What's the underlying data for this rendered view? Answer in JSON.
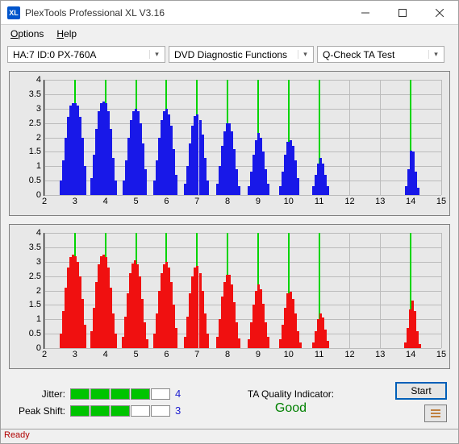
{
  "window": {
    "title": "PlexTools Professional XL V3.16"
  },
  "menu": {
    "options": "Options",
    "help": "Help"
  },
  "toolbar": {
    "device": "HA:7 ID:0   PX-760A",
    "category": "DVD Diagnostic Functions",
    "test": "Q-Check TA Test"
  },
  "chart": {
    "ylabels": [
      "0",
      "0.5",
      "1",
      "1.5",
      "2",
      "2.5",
      "3",
      "3.5",
      "4"
    ],
    "ymax": 4,
    "xlabels": [
      "2",
      "3",
      "4",
      "5",
      "6",
      "7",
      "8",
      "9",
      "10",
      "11",
      "12",
      "13",
      "14",
      "15"
    ],
    "xstart": 2,
    "xend": 15,
    "background_color": "#e8e8e8",
    "grid_color": "#bbbbbb",
    "marker_color": "#00d400",
    "markers": [
      3,
      4,
      5,
      6,
      7,
      8,
      9,
      10,
      11,
      14
    ],
    "top": {
      "bar_color": "#1818e8",
      "bars": [
        [
          2.55,
          0.5
        ],
        [
          2.62,
          1.2
        ],
        [
          2.7,
          2.0
        ],
        [
          2.78,
          2.7
        ],
        [
          2.86,
          3.1
        ],
        [
          2.94,
          3.2
        ],
        [
          3.02,
          3.2
        ],
        [
          3.1,
          3.1
        ],
        [
          3.18,
          2.7
        ],
        [
          3.26,
          2.0
        ],
        [
          3.34,
          1.0
        ],
        [
          3.55,
          0.6
        ],
        [
          3.62,
          1.4
        ],
        [
          3.7,
          2.3
        ],
        [
          3.78,
          2.9
        ],
        [
          3.86,
          3.2
        ],
        [
          3.94,
          3.25
        ],
        [
          4.02,
          3.2
        ],
        [
          4.1,
          2.9
        ],
        [
          4.18,
          2.3
        ],
        [
          4.26,
          1.3
        ],
        [
          4.34,
          0.5
        ],
        [
          4.6,
          0.5
        ],
        [
          4.68,
          1.2
        ],
        [
          4.76,
          2.0
        ],
        [
          4.84,
          2.6
        ],
        [
          4.92,
          2.9
        ],
        [
          5.0,
          3.0
        ],
        [
          5.08,
          2.9
        ],
        [
          5.16,
          2.5
        ],
        [
          5.24,
          1.8
        ],
        [
          5.32,
          0.9
        ],
        [
          5.6,
          0.5
        ],
        [
          5.68,
          1.2
        ],
        [
          5.76,
          2.0
        ],
        [
          5.84,
          2.6
        ],
        [
          5.92,
          2.9
        ],
        [
          6.0,
          3.0
        ],
        [
          6.08,
          2.8
        ],
        [
          6.16,
          2.4
        ],
        [
          6.24,
          1.6
        ],
        [
          6.32,
          0.7
        ],
        [
          6.62,
          0.4
        ],
        [
          6.7,
          1.0
        ],
        [
          6.78,
          1.8
        ],
        [
          6.86,
          2.4
        ],
        [
          6.94,
          2.75
        ],
        [
          7.02,
          2.8
        ],
        [
          7.1,
          2.6
        ],
        [
          7.18,
          2.1
        ],
        [
          7.26,
          1.3
        ],
        [
          7.34,
          0.5
        ],
        [
          7.66,
          0.4
        ],
        [
          7.74,
          1.0
        ],
        [
          7.82,
          1.7
        ],
        [
          7.9,
          2.2
        ],
        [
          7.98,
          2.5
        ],
        [
          8.06,
          2.5
        ],
        [
          8.14,
          2.2
        ],
        [
          8.22,
          1.6
        ],
        [
          8.3,
          0.9
        ],
        [
          8.38,
          0.3
        ],
        [
          8.7,
          0.3
        ],
        [
          8.78,
          0.8
        ],
        [
          8.86,
          1.4
        ],
        [
          8.94,
          1.9
        ],
        [
          9.02,
          2.15
        ],
        [
          9.1,
          2.0
        ],
        [
          9.18,
          1.5
        ],
        [
          9.26,
          0.9
        ],
        [
          9.34,
          0.4
        ],
        [
          9.74,
          0.3
        ],
        [
          9.82,
          0.8
        ],
        [
          9.9,
          1.4
        ],
        [
          9.98,
          1.85
        ],
        [
          10.06,
          1.9
        ],
        [
          10.14,
          1.7
        ],
        [
          10.22,
          1.2
        ],
        [
          10.3,
          0.6
        ],
        [
          10.8,
          0.3
        ],
        [
          10.88,
          0.7
        ],
        [
          10.96,
          1.1
        ],
        [
          11.04,
          1.3
        ],
        [
          11.12,
          1.1
        ],
        [
          11.2,
          0.7
        ],
        [
          11.28,
          0.3
        ],
        [
          13.86,
          0.3
        ],
        [
          13.94,
          0.9
        ],
        [
          14.02,
          1.55
        ],
        [
          14.1,
          1.5
        ],
        [
          14.18,
          0.8
        ],
        [
          14.26,
          0.25
        ]
      ]
    },
    "bottom": {
      "bar_color": "#f01010",
      "bars": [
        [
          2.55,
          0.5
        ],
        [
          2.62,
          1.3
        ],
        [
          2.7,
          2.1
        ],
        [
          2.78,
          2.8
        ],
        [
          2.86,
          3.15
        ],
        [
          2.94,
          3.25
        ],
        [
          3.02,
          3.2
        ],
        [
          3.1,
          3.0
        ],
        [
          3.18,
          2.5
        ],
        [
          3.26,
          1.7
        ],
        [
          3.34,
          0.8
        ],
        [
          3.55,
          0.6
        ],
        [
          3.62,
          1.4
        ],
        [
          3.7,
          2.3
        ],
        [
          3.78,
          2.9
        ],
        [
          3.86,
          3.2
        ],
        [
          3.94,
          3.25
        ],
        [
          4.02,
          3.15
        ],
        [
          4.1,
          2.8
        ],
        [
          4.18,
          2.1
        ],
        [
          4.26,
          1.2
        ],
        [
          4.34,
          0.5
        ],
        [
          4.58,
          0.4
        ],
        [
          4.66,
          1.1
        ],
        [
          4.74,
          1.9
        ],
        [
          4.82,
          2.6
        ],
        [
          4.9,
          2.95
        ],
        [
          4.98,
          3.05
        ],
        [
          5.06,
          2.9
        ],
        [
          5.14,
          2.5
        ],
        [
          5.22,
          1.7
        ],
        [
          5.3,
          0.9
        ],
        [
          5.38,
          0.3
        ],
        [
          5.6,
          0.5
        ],
        [
          5.68,
          1.2
        ],
        [
          5.76,
          2.0
        ],
        [
          5.84,
          2.6
        ],
        [
          5.92,
          2.9
        ],
        [
          6.0,
          3.0
        ],
        [
          6.08,
          2.8
        ],
        [
          6.16,
          2.3
        ],
        [
          6.24,
          1.5
        ],
        [
          6.32,
          0.7
        ],
        [
          6.62,
          0.4
        ],
        [
          6.7,
          1.1
        ],
        [
          6.78,
          1.9
        ],
        [
          6.86,
          2.5
        ],
        [
          6.94,
          2.8
        ],
        [
          7.02,
          2.85
        ],
        [
          7.1,
          2.6
        ],
        [
          7.18,
          2.0
        ],
        [
          7.26,
          1.2
        ],
        [
          7.34,
          0.5
        ],
        [
          7.66,
          0.4
        ],
        [
          7.74,
          1.0
        ],
        [
          7.82,
          1.8
        ],
        [
          7.9,
          2.3
        ],
        [
          7.98,
          2.55
        ],
        [
          8.06,
          2.55
        ],
        [
          8.14,
          2.2
        ],
        [
          8.22,
          1.6
        ],
        [
          8.3,
          0.9
        ],
        [
          8.38,
          0.35
        ],
        [
          8.7,
          0.3
        ],
        [
          8.78,
          0.9
        ],
        [
          8.86,
          1.5
        ],
        [
          8.94,
          2.0
        ],
        [
          9.02,
          2.2
        ],
        [
          9.1,
          2.05
        ],
        [
          9.18,
          1.55
        ],
        [
          9.26,
          0.9
        ],
        [
          9.34,
          0.4
        ],
        [
          9.74,
          0.3
        ],
        [
          9.82,
          0.8
        ],
        [
          9.9,
          1.4
        ],
        [
          9.98,
          1.9
        ],
        [
          10.06,
          1.95
        ],
        [
          10.14,
          1.7
        ],
        [
          10.22,
          1.2
        ],
        [
          10.3,
          0.6
        ],
        [
          10.38,
          0.2
        ],
        [
          10.8,
          0.2
        ],
        [
          10.88,
          0.6
        ],
        [
          10.96,
          1.0
        ],
        [
          11.04,
          1.2
        ],
        [
          11.12,
          1.05
        ],
        [
          11.2,
          0.65
        ],
        [
          11.28,
          0.25
        ],
        [
          13.82,
          0.2
        ],
        [
          13.9,
          0.7
        ],
        [
          13.98,
          1.35
        ],
        [
          14.06,
          1.65
        ],
        [
          14.14,
          1.3
        ],
        [
          14.22,
          0.6
        ],
        [
          14.3,
          0.15
        ]
      ]
    }
  },
  "metrics": {
    "jitter_label": "Jitter:",
    "jitter_value": "4",
    "jitter_bars": 4,
    "peak_label": "Peak Shift:",
    "peak_value": "3",
    "peak_bars": 3,
    "quality_label": "TA Quality Indicator:",
    "quality_value": "Good",
    "seg_on_color": "#00c400"
  },
  "buttons": {
    "start": "Start"
  },
  "status": {
    "text": "Ready"
  }
}
